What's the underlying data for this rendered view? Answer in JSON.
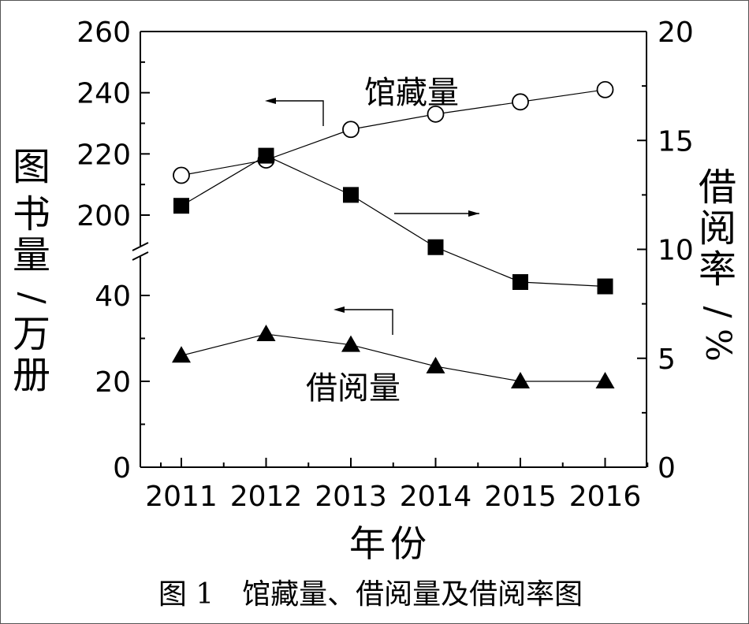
{
  "caption": "图 1　馆藏量、借阅量及借阅率图",
  "chart_data": {
    "type": "line",
    "xlabel": "年份",
    "ylabel_left": "图书量/万册",
    "ylabel_right": "借阅率/%",
    "categories": [
      "2011",
      "2012",
      "2013",
      "2014",
      "2015",
      "2016"
    ],
    "left_axis": {
      "broken": true,
      "lower_range": [
        0,
        50
      ],
      "upper_range": [
        190,
        260
      ],
      "ticks": [
        "0",
        "20",
        "40",
        "200",
        "220",
        "240",
        "260"
      ]
    },
    "right_axis": {
      "range": [
        0,
        20
      ],
      "ticks": [
        "0",
        "5",
        "10",
        "15",
        "20"
      ]
    },
    "series": [
      {
        "name": "馆藏量",
        "axis": "left",
        "marker": "open-circle",
        "values": [
          213,
          218,
          228,
          233,
          237,
          241
        ]
      },
      {
        "name": "借阅量",
        "axis": "left",
        "marker": "filled-triangle",
        "values": [
          26,
          31,
          28.5,
          23.5,
          20,
          20
        ]
      },
      {
        "axis": "right",
        "marker": "filled-square",
        "values": [
          12,
          14.3,
          12.5,
          10.1,
          8.5,
          8.3
        ]
      }
    ],
    "annotations": [
      "馆藏量",
      "借阅量"
    ]
  }
}
